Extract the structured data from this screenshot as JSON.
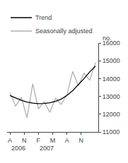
{
  "chart_data": {
    "type": "line",
    "x": [
      0,
      1,
      2,
      3,
      4,
      5,
      6,
      7,
      8,
      9,
      10,
      11,
      12,
      13,
      14,
      15
    ],
    "series": [
      {
        "name": "Trend",
        "color": "#000000",
        "values": [
          13050,
          12900,
          12780,
          12680,
          12620,
          12590,
          12600,
          12640,
          12720,
          12850,
          13050,
          13320,
          13650,
          14000,
          14380,
          14700
        ]
      },
      {
        "name": "Seasonally adjusted",
        "color": "#b0b0b0",
        "values": [
          13200,
          12450,
          12950,
          11800,
          13700,
          12300,
          12700,
          12100,
          12900,
          12550,
          13100,
          14400,
          13600,
          14300,
          13900,
          14900
        ]
      }
    ],
    "xlim": [
      -0.5,
      15.5
    ],
    "xticks": [
      {
        "value": 0,
        "label": "A"
      },
      {
        "value": 2.5,
        "label": "N"
      },
      {
        "value": 5,
        "label": "F"
      },
      {
        "value": 7.5,
        "label": "M"
      },
      {
        "value": 10,
        "label": "A"
      },
      {
        "value": 12.5,
        "label": "N"
      }
    ],
    "ylim": [
      11000,
      16000
    ],
    "yticks": [
      11000,
      12000,
      13000,
      14000,
      15000,
      16000
    ],
    "annotations": [
      {
        "text": "no."
      },
      {
        "text": "2006",
        "x": 0
      },
      {
        "text": "2007",
        "x": 5
      }
    ],
    "legend": "upper left",
    "grid": false
  }
}
